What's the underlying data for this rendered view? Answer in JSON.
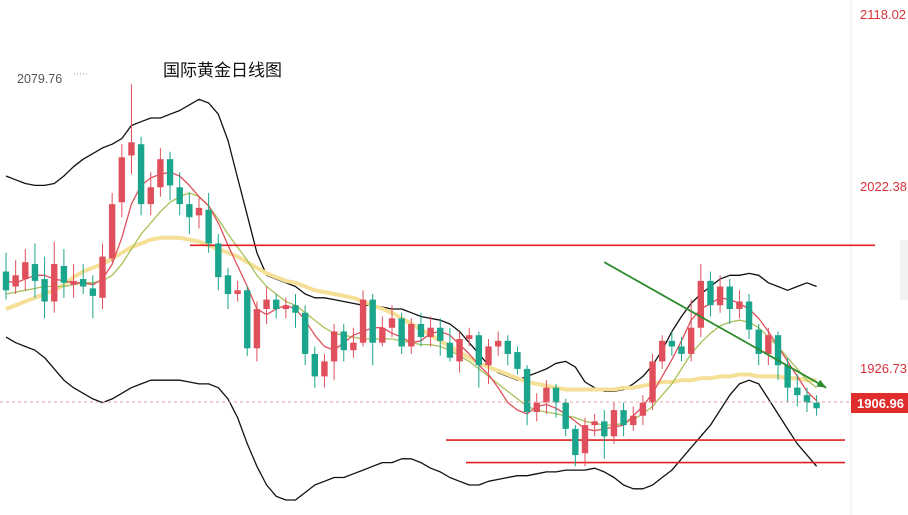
{
  "chart_data": {
    "type": "candlestick",
    "title": "国际黄金日线图",
    "peak_label": "2079.76",
    "current_price": "1906.96",
    "yaxis_ticks": [
      "2118.02",
      "2022.38",
      "1926.73"
    ],
    "ylim": [
      1850,
      2125
    ],
    "colors": {
      "up": "#e0505c",
      "down": "#1aa58c",
      "boll": "#111111",
      "ma_long": "#f6df96",
      "ma_short": "#e0505c",
      "ma_mid": "#a6c158",
      "support_line": "#e02020",
      "trend_arrow": "#2e8b2e",
      "axis_text": "#d8313a"
    },
    "candles": [
      [
        1980,
        1970,
        1990,
        1965
      ],
      [
        1972,
        1978,
        1986,
        1968
      ],
      [
        1976,
        1985,
        1992,
        1970
      ],
      [
        1984,
        1975,
        1995,
        1966
      ],
      [
        1976,
        1964,
        1988,
        1955
      ],
      [
        1964,
        1984,
        1996,
        1958
      ],
      [
        1983,
        1974,
        1992,
        1966
      ],
      [
        1973,
        1975,
        1984,
        1966
      ],
      [
        1976,
        1972,
        1984,
        1968
      ],
      [
        1971,
        1967,
        1978,
        1955
      ],
      [
        1966,
        1988,
        1995,
        1960
      ],
      [
        1987,
        2016,
        2022,
        1985
      ],
      [
        2017,
        2041,
        2048,
        2009
      ],
      [
        2042,
        2049,
        2080,
        2032
      ],
      [
        2048,
        2016,
        2052,
        2010
      ],
      [
        2016,
        2025,
        2033,
        2010
      ],
      [
        2025,
        2040,
        2046,
        2020
      ],
      [
        2040,
        2026,
        2044,
        2018
      ],
      [
        2025,
        2016,
        2033,
        2010
      ],
      [
        2016,
        2009,
        2022,
        2000
      ],
      [
        2010,
        2014,
        2020,
        2003
      ],
      [
        2013,
        1995,
        2022,
        1990
      ],
      [
        1995,
        1977,
        2000,
        1970
      ],
      [
        1978,
        1968,
        1982,
        1960
      ],
      [
        1968,
        1970,
        1975,
        1964
      ],
      [
        1970,
        1939,
        1972,
        1935
      ],
      [
        1939,
        1960,
        1964,
        1932
      ],
      [
        1960,
        1965,
        1972,
        1952
      ],
      [
        1965,
        1960,
        1968,
        1955
      ],
      [
        1960,
        1962,
        1966,
        1955
      ],
      [
        1962,
        1958,
        1968,
        1950
      ],
      [
        1958,
        1936,
        1962,
        1930
      ],
      [
        1936,
        1924,
        1940,
        1918
      ],
      [
        1924,
        1932,
        1936,
        1918
      ],
      [
        1932,
        1948,
        1952,
        1922
      ],
      [
        1948,
        1938,
        1952,
        1932
      ],
      [
        1938,
        1942,
        1950,
        1934
      ],
      [
        1942,
        1965,
        1970,
        1940
      ],
      [
        1965,
        1942,
        1968,
        1930
      ],
      [
        1942,
        1950,
        1956,
        1940
      ],
      [
        1950,
        1955,
        1962,
        1945
      ],
      [
        1955,
        1940,
        1958,
        1936
      ],
      [
        1940,
        1952,
        1955,
        1936
      ],
      [
        1952,
        1945,
        1958,
        1940
      ],
      [
        1945,
        1950,
        1956,
        1940
      ],
      [
        1950,
        1943,
        1955,
        1935
      ],
      [
        1942,
        1934,
        1950,
        1932
      ],
      [
        1932,
        1944,
        1948,
        1926
      ],
      [
        1944,
        1946,
        1950,
        1940
      ],
      [
        1946,
        1930,
        1948,
        1918
      ],
      [
        1930,
        1940,
        1944,
        1920
      ],
      [
        1940,
        1943,
        1948,
        1935
      ],
      [
        1943,
        1936,
        1946,
        1930
      ],
      [
        1937,
        1928,
        1940,
        1925
      ],
      [
        1928,
        1905,
        1930,
        1898
      ],
      [
        1905,
        1910,
        1915,
        1900
      ],
      [
        1910,
        1918,
        1922,
        1904
      ],
      [
        1918,
        1910,
        1920,
        1902
      ],
      [
        1910,
        1896,
        1912,
        1892
      ],
      [
        1896,
        1882,
        1898,
        1876
      ],
      [
        1883,
        1898,
        1902,
        1876
      ],
      [
        1898,
        1900,
        1904,
        1892
      ],
      [
        1900,
        1892,
        1906,
        1880
      ],
      [
        1892,
        1906,
        1910,
        1888
      ],
      [
        1906,
        1898,
        1910,
        1892
      ],
      [
        1898,
        1903,
        1908,
        1895
      ],
      [
        1903,
        1910,
        1914,
        1898
      ],
      [
        1910,
        1932,
        1936,
        1906
      ],
      [
        1932,
        1943,
        1946,
        1928
      ],
      [
        1943,
        1940,
        1948,
        1935
      ],
      [
        1940,
        1936,
        1945,
        1932
      ],
      [
        1936,
        1950,
        1965,
        1932
      ],
      [
        1950,
        1975,
        1984,
        1945
      ],
      [
        1975,
        1962,
        1980,
        1956
      ],
      [
        1962,
        1972,
        1978,
        1958
      ],
      [
        1972,
        1960,
        1976,
        1952
      ],
      [
        1960,
        1964,
        1970,
        1955
      ],
      [
        1964,
        1949,
        1968,
        1944
      ],
      [
        1949,
        1936,
        1952,
        1930
      ],
      [
        1936,
        1946,
        1950,
        1930
      ],
      [
        1946,
        1930,
        1948,
        1922
      ],
      [
        1930,
        1918,
        1934,
        1910
      ],
      [
        1918,
        1914,
        1925,
        1908
      ],
      [
        1914,
        1910,
        1918,
        1905
      ],
      [
        1910,
        1907,
        1914,
        1903
      ]
    ],
    "boll_upper": [
      2031,
      2029,
      2027,
      2026,
      2026,
      2027,
      2031,
      2036,
      2040,
      2043,
      2046,
      2048,
      2051,
      2058,
      2060,
      2062,
      2062,
      2064,
      2066,
      2069,
      2072,
      2070,
      2064,
      2050,
      2030,
      2010,
      1990,
      1978,
      1976,
      1974,
      1972,
      1968,
      1966,
      1966,
      1965,
      1964,
      1963,
      1962,
      1962,
      1961,
      1960,
      1960,
      1958,
      1956,
      1955,
      1954,
      1952,
      1948,
      1942,
      1936,
      1930,
      1926,
      1924,
      1922,
      1924,
      1926,
      1928,
      1931,
      1932,
      1929,
      1921,
      1918,
      1916,
      1916,
      1917,
      1920,
      1924,
      1930,
      1938,
      1948,
      1956,
      1963,
      1968,
      1972,
      1976,
      1978,
      1978,
      1979,
      1978,
      1974,
      1972,
      1970,
      1972,
      1974,
      1972
    ],
    "boll_lower": [
      1945,
      1942,
      1940,
      1938,
      1934,
      1928,
      1922,
      1918,
      1915,
      1912,
      1910,
      1912,
      1915,
      1918,
      1920,
      1922,
      1922,
      1922,
      1922,
      1921,
      1920,
      1920,
      1918,
      1912,
      1902,
      1888,
      1876,
      1866,
      1860,
      1858,
      1858,
      1862,
      1866,
      1868,
      1870,
      1870,
      1872,
      1874,
      1876,
      1878,
      1878,
      1880,
      1880,
      1878,
      1875,
      1873,
      1870,
      1868,
      1866,
      1866,
      1868,
      1869,
      1870,
      1871,
      1871,
      1872,
      1873,
      1873,
      1874,
      1874,
      1874,
      1875,
      1873,
      1870,
      1866,
      1864,
      1864,
      1866,
      1870,
      1874,
      1880,
      1886,
      1892,
      1898,
      1906,
      1914,
      1920,
      1922,
      1920,
      1912,
      1904,
      1896,
      1888,
      1882,
      1876
    ],
    "ma_long": [
      1960,
      1962,
      1964,
      1966,
      1968,
      1970,
      1973,
      1977,
      1980,
      1982,
      1984,
      1987,
      1990,
      1993,
      1995,
      1997,
      1998,
      1998,
      1998,
      1997,
      1996,
      1994,
      1992,
      1990,
      1988,
      1985,
      1982,
      1979,
      1977,
      1975,
      1974,
      1972,
      1970,
      1969,
      1968,
      1967,
      1966,
      1964,
      1962,
      1960,
      1958,
      1955,
      1952,
      1949,
      1946,
      1943,
      1940,
      1937,
      1934,
      1931,
      1929,
      1927,
      1925,
      1923,
      1921,
      1920,
      1919,
      1918,
      1917,
      1917,
      1917,
      1917,
      1917,
      1917,
      1918,
      1918,
      1919,
      1920,
      1921,
      1921,
      1922,
      1922,
      1923,
      1923,
      1924,
      1924,
      1925,
      1925,
      1924,
      1924,
      1924,
      1923,
      1923,
      1922,
      1922
    ],
    "ma_short": [
      1975,
      1974,
      1976,
      1978,
      1978,
      1976,
      1975,
      1974,
      1974,
      1973,
      1976,
      1984,
      1998,
      2016,
      2026,
      2030,
      2032,
      2033,
      2031,
      2026,
      2020,
      2015,
      2006,
      1994,
      1983,
      1972,
      1960,
      1957,
      1960,
      1962,
      1960,
      1954,
      1946,
      1940,
      1938,
      1942,
      1946,
      1948,
      1950,
      1950,
      1947,
      1945,
      1942,
      1943,
      1947,
      1948,
      1946,
      1941,
      1936,
      1930,
      1925,
      1918,
      1910,
      1906,
      1904,
      1908,
      1909,
      1907,
      1904,
      1900,
      1896,
      1895,
      1896,
      1897,
      1898,
      1903,
      1908,
      1915,
      1924,
      1933,
      1943,
      1954,
      1960,
      1963,
      1966,
      1965,
      1963,
      1960,
      1955,
      1948,
      1940,
      1932,
      1924,
      1916,
      1911
    ],
    "ma_mid": [
      1968,
      1969,
      1970,
      1971,
      1972,
      1972,
      1972,
      1973,
      1974,
      1974,
      1975,
      1978,
      1984,
      1992,
      2000,
      2006,
      2012,
      2017,
      2020,
      2022,
      2020,
      2015,
      2008,
      2000,
      1993,
      1986,
      1978,
      1972,
      1968,
      1964,
      1962,
      1958,
      1954,
      1950,
      1947,
      1946,
      1945,
      1944,
      1944,
      1944,
      1944,
      1943,
      1942,
      1941,
      1941,
      1940,
      1938,
      1935,
      1932,
      1928,
      1924,
      1920,
      1916,
      1912,
      1908,
      1906,
      1905,
      1904,
      1903,
      1902,
      1900,
      1899,
      1898,
      1898,
      1899,
      1901,
      1904,
      1908,
      1914,
      1920,
      1928,
      1936,
      1942,
      1947,
      1951,
      1953,
      1954,
      1953,
      1950,
      1945,
      1940,
      1934,
      1928,
      1922,
      1918
    ],
    "support_lines": [
      1994,
      1890,
      1878
    ],
    "trend_arrow": {
      "from": [
        62,
        1985
      ],
      "to": [
        85,
        1918
      ]
    }
  }
}
